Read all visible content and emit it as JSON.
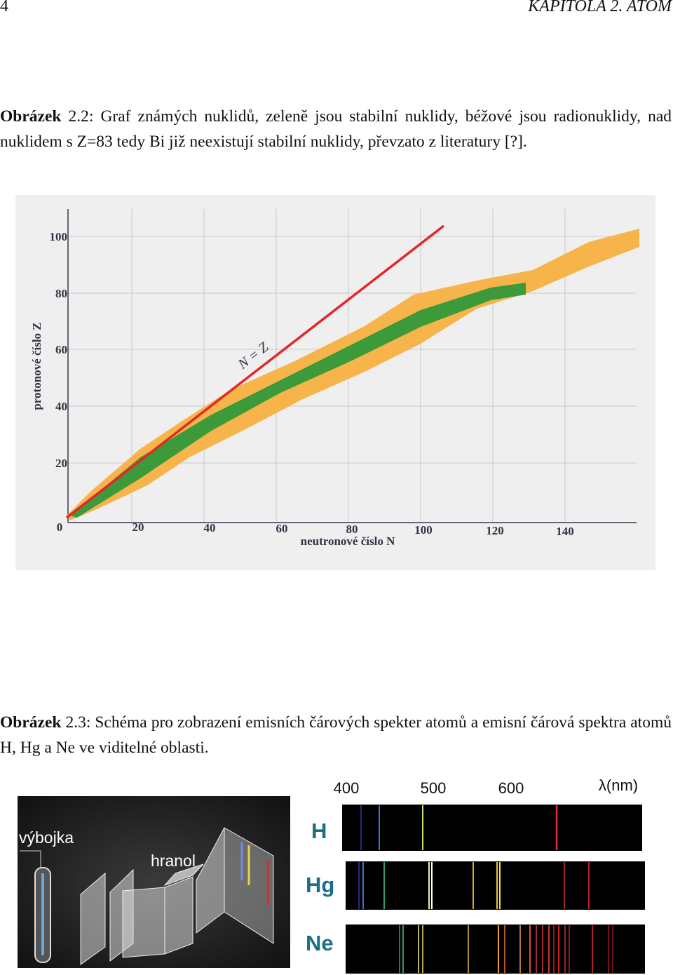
{
  "header": {
    "page_number": "4",
    "title": "KAPITOLA 2.  ATOM"
  },
  "figures": [
    {
      "caption_label": "Obrázek",
      "caption": "2.2: Graf známých nuklidů, zeleně jsou stabilní nuklidy, béžové jsou radionuklidy, nad nuklidem s Z=83 tedy Bi již neexistují stabilní nuklidy, převzato z literatury [?].",
      "y_axis_label": "protonové číslo Z",
      "x_axis_label": "neutronové číslo N",
      "line_label": "N = Z",
      "y_ticks": [
        "100",
        "80",
        "60",
        "40",
        "20"
      ],
      "x_ticks": [
        "0",
        "20",
        "40",
        "60",
        "80",
        "100",
        "120",
        "140"
      ]
    },
    {
      "caption_label": "Obrázek",
      "caption": "2.3: Schéma pro zobrazení emisních čárových spekter atomů a emisní čárová spektra atomů H, Hg a Ne ve viditelné oblasti.",
      "labels": [
        "výbojka",
        "hranol"
      ],
      "wavelength_ticks": [
        "400",
        "500",
        "600"
      ],
      "wavelength_unit": "λ(nm)",
      "spectra": [
        "H",
        "Hg",
        "Ne"
      ]
    }
  ]
}
